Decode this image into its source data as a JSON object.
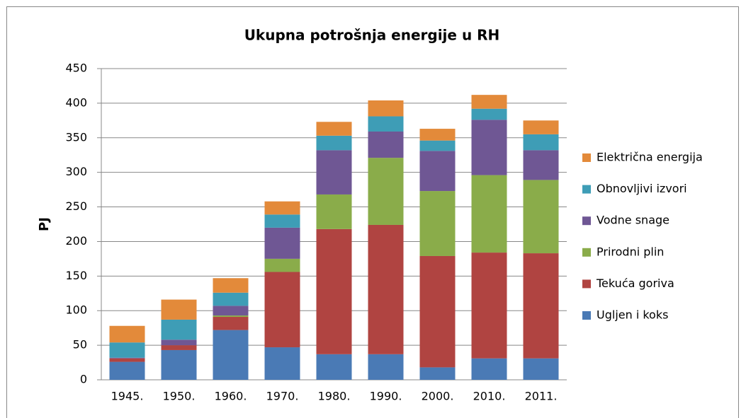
{
  "chart_data": {
    "type": "stacked_bar",
    "title": "Ukupna potrošnja energije u RH",
    "y_label": "PJ",
    "categories": [
      "1945.",
      "1950.",
      "1960.",
      "1970.",
      "1980.",
      "1990.",
      "2000.",
      "2010.",
      "2011."
    ],
    "series": [
      {
        "name": "Ugljen i koks",
        "color": "#4a7ab5",
        "values": [
          26,
          43,
          72,
          47,
          37,
          37,
          18,
          31,
          31
        ]
      },
      {
        "name": "Tekuća goriva",
        "color": "#b04441",
        "values": [
          5,
          7,
          19,
          109,
          181,
          187,
          161,
          153,
          152
        ]
      },
      {
        "name": "Prirodni plin",
        "color": "#8aac4a",
        "values": [
          0,
          0,
          2,
          19,
          50,
          97,
          94,
          112,
          106
        ]
      },
      {
        "name": "Vodne snage",
        "color": "#6f5794",
        "values": [
          1,
          8,
          14,
          45,
          64,
          38,
          58,
          80,
          43
        ]
      },
      {
        "name": "Obnovljivi izvori",
        "color": "#3e9db6",
        "values": [
          22,
          29,
          19,
          19,
          21,
          22,
          15,
          16,
          23
        ]
      },
      {
        "name": "Električna energija",
        "color": "#e38a3a",
        "values": [
          24,
          29,
          21,
          19,
          20,
          23,
          17,
          20,
          20
        ]
      }
    ],
    "ylim": [
      0,
      450
    ],
    "yticks": [
      0,
      50,
      100,
      150,
      200,
      250,
      300,
      350,
      400,
      450
    ],
    "grid": true,
    "legend": "right"
  }
}
